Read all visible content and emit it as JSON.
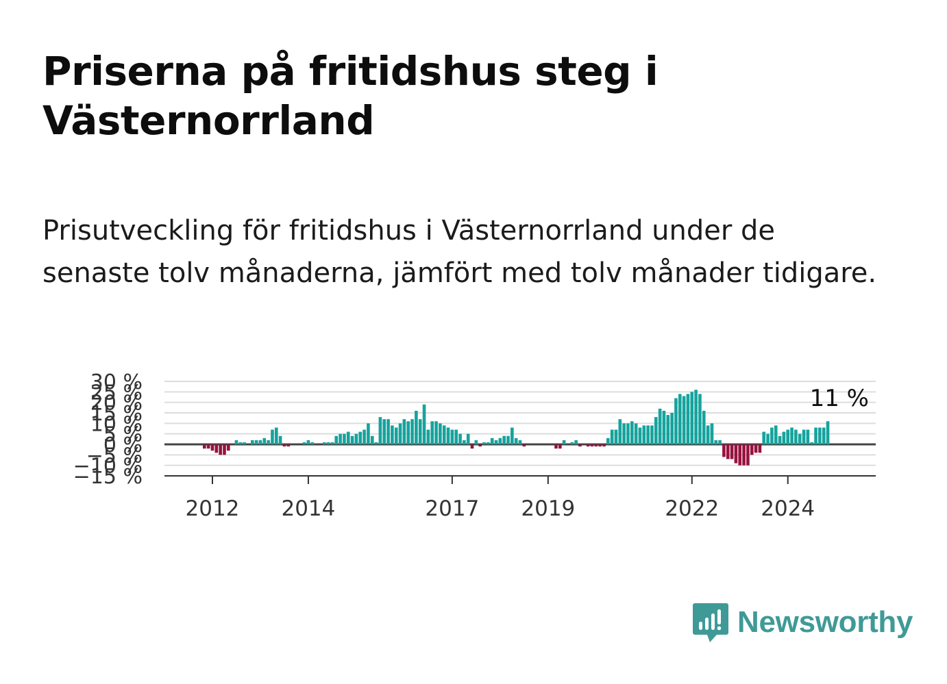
{
  "title": "Priserna på fritidshus steg i Västernorrland",
  "subtitle": "Prisutveckling för fritidshus i Västernorrland under de senaste tolv månaderna, jämfört med tolv månader tidigare.",
  "brand": {
    "name": "Newsworthy",
    "color": "#3f9a97"
  },
  "colors": {
    "positive": "#16a39d",
    "negative": "#96133f",
    "grid": "#dddddd",
    "zero": "#444444"
  },
  "chart_data": {
    "type": "bar",
    "title": "",
    "xlabel": "",
    "ylabel": "",
    "ylim": [
      -15,
      30
    ],
    "y_ticks": [
      -15,
      -10,
      -5,
      0,
      5,
      10,
      15,
      20,
      25,
      30
    ],
    "y_tick_labels": [
      "−15 %",
      "−10 %",
      "−5 %",
      "0 %",
      "5 %",
      "10 %",
      "15 %",
      "20 %",
      "25 %",
      "30 %"
    ],
    "x_range": [
      2011.0,
      2025.833
    ],
    "x_ticks": [
      2012,
      2014,
      2017,
      2019,
      2022,
      2024
    ],
    "x_tick_labels": [
      "2012",
      "2014",
      "2017",
      "2019",
      "2022",
      "2024"
    ],
    "grid": true,
    "last_value_label": "11 %",
    "series": [
      {
        "start": "2011-10",
        "frequency": "monthly",
        "values": [
          0,
          -2,
          -2,
          -3,
          -4,
          -5,
          -5,
          -3,
          0,
          2,
          1,
          1,
          0,
          2,
          2,
          2,
          3,
          2,
          7,
          8,
          4,
          -1,
          -1,
          0,
          0,
          0,
          1,
          2,
          1,
          0,
          0,
          1,
          1,
          1,
          4,
          5,
          5,
          6,
          4,
          5,
          6,
          7,
          10,
          4,
          1,
          13,
          12,
          12,
          9,
          8,
          10,
          12,
          11,
          12,
          16,
          12,
          19,
          7,
          11,
          11,
          10,
          9,
          8,
          7,
          7,
          5,
          2,
          5,
          -2,
          2,
          -1,
          1,
          1,
          3,
          2,
          3,
          4,
          4,
          8,
          3,
          2,
          -1,
          0,
          0,
          0,
          0,
          0,
          0,
          0,
          -2,
          -2,
          2,
          0,
          1,
          2,
          -1,
          0,
          -1,
          -1,
          -1,
          -1,
          -1,
          3,
          7,
          7,
          12,
          10,
          10,
          11,
          10,
          8,
          9,
          9,
          9,
          13,
          17,
          16,
          14,
          15,
          22,
          24,
          23,
          24,
          25,
          26,
          24,
          16,
          9,
          10,
          2,
          2,
          -6,
          -7,
          -7,
          -9,
          -10,
          -10,
          -10,
          -5,
          -4,
          -4,
          6,
          5,
          8,
          9,
          4,
          6,
          7,
          8,
          7,
          5,
          7,
          7,
          1,
          8,
          8,
          8,
          11
        ]
      }
    ]
  }
}
